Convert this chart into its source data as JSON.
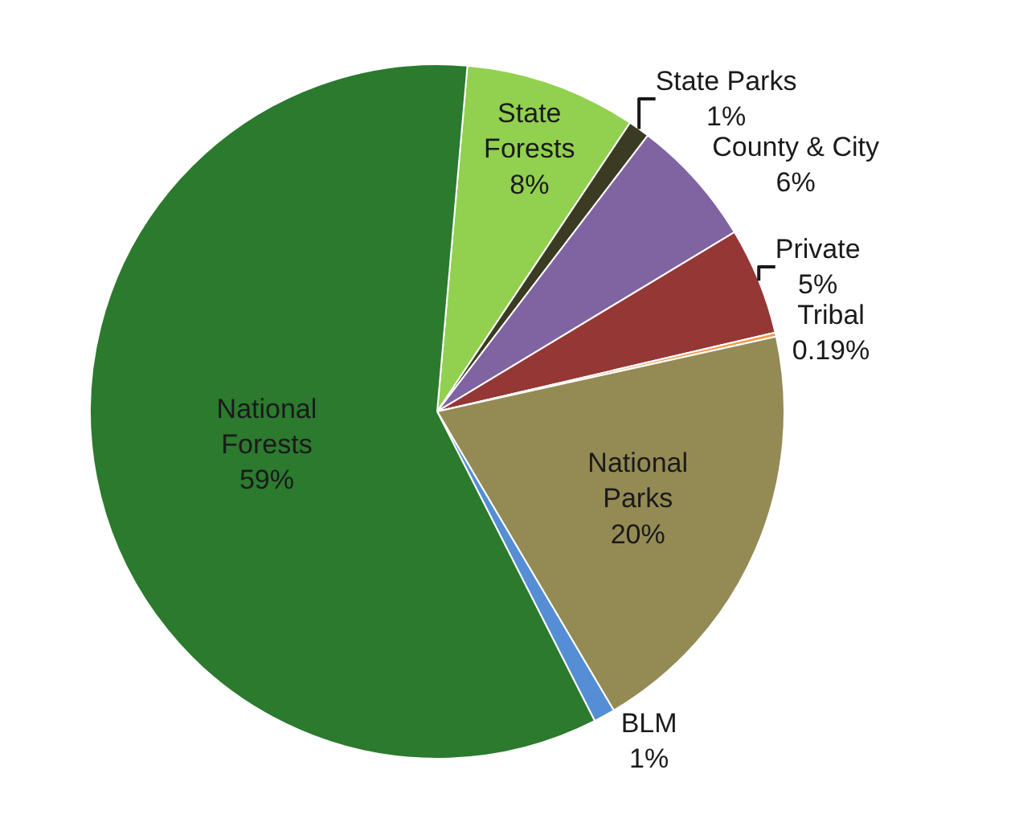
{
  "chart_data": {
    "type": "pie",
    "categories": [
      "State Forests",
      "State Parks",
      "County & City",
      "Private",
      "Tribal",
      "National Parks",
      "BLM",
      "National Forests"
    ],
    "values": [
      8,
      1,
      6,
      5,
      0.19,
      20,
      1,
      59
    ],
    "value_labels": [
      "8%",
      "1%",
      "6%",
      "5%",
      "0.19%",
      "20%",
      "1%",
      "59%"
    ],
    "colors": [
      "#92d050",
      "#3b3b24",
      "#8064a2",
      "#953735",
      "#f79646",
      "#948a54",
      "#558ed5",
      "#2b7a2e"
    ],
    "legend": false
  }
}
